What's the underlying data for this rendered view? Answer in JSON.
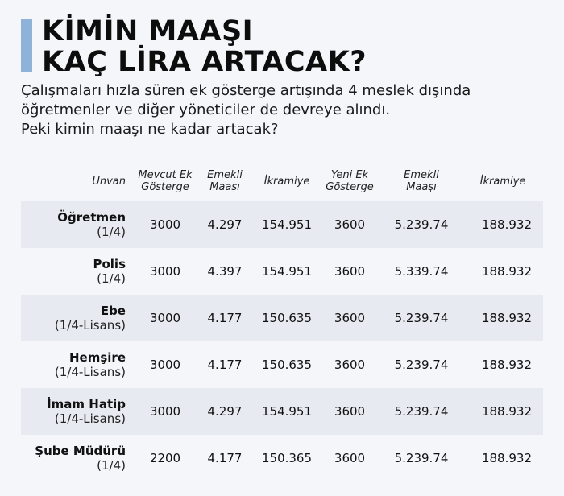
{
  "header": {
    "title_line1": "KİMİN MAAŞI",
    "title_line2": "KAÇ LİRA ARTACAK?",
    "subtitle_lines": [
      "Çalışmaları hızla süren ek gösterge artışında 4 meslek dışında",
      "öğretmenler ve diğer yöneticiler de devreye alındı.",
      "Peki kimin maaşı ne kadar artacak?"
    ]
  },
  "colors": {
    "accent": "#8fb2d8",
    "row_shade": "#e7ebf1",
    "background": "#f4f6f9"
  },
  "table": {
    "headers": {
      "unvan": "Unvan",
      "mevcut_1": "Mevcut Ek",
      "mevcut_2": "Gösterge",
      "emekli_1": "Emekli",
      "emekli_2": "Maaşı",
      "ikramiye": "İkramiye",
      "yeni_1": "Yeni Ek",
      "yeni_2": "Gösterge",
      "emekli2_1": "Emekli",
      "emekli2_2": "Maaşı",
      "ikramiye2": "İkramiye"
    },
    "rows": [
      {
        "name": "Öğretmen",
        "class": "(1/4)",
        "mevcut": "3000",
        "emekli": "4.297",
        "ikramiye": "154.951",
        "yeni": "3600",
        "yeni_emekli": "5.239.74",
        "yeni_ikramiye": "188.932"
      },
      {
        "name": "Polis",
        "class": "(1/4)",
        "mevcut": "3000",
        "emekli": "4.397",
        "ikramiye": "154.951",
        "yeni": "3600",
        "yeni_emekli": "5.339.74",
        "yeni_ikramiye": "188.932"
      },
      {
        "name": "Ebe",
        "class": "(1/4-Lisans)",
        "mevcut": "3000",
        "emekli": "4.177",
        "ikramiye": "150.635",
        "yeni": "3600",
        "yeni_emekli": "5.239.74",
        "yeni_ikramiye": "188.932"
      },
      {
        "name": "Hemşire",
        "class": "(1/4-Lisans)",
        "mevcut": "3000",
        "emekli": "4.177",
        "ikramiye": "150.635",
        "yeni": "3600",
        "yeni_emekli": "5.239.74",
        "yeni_ikramiye": "188.932"
      },
      {
        "name": "İmam Hatip",
        "class": "(1/4-Lisans)",
        "mevcut": "3000",
        "emekli": "4.297",
        "ikramiye": "154.951",
        "yeni": "3600",
        "yeni_emekli": "5.239.74",
        "yeni_ikramiye": "188.932"
      },
      {
        "name": "Şube Müdürü",
        "class": "(1/4)",
        "mevcut": "2200",
        "emekli": "4.177",
        "ikramiye": "150.365",
        "yeni": "3600",
        "yeni_emekli": "5.239.74",
        "yeni_ikramiye": "188.932"
      }
    ]
  }
}
